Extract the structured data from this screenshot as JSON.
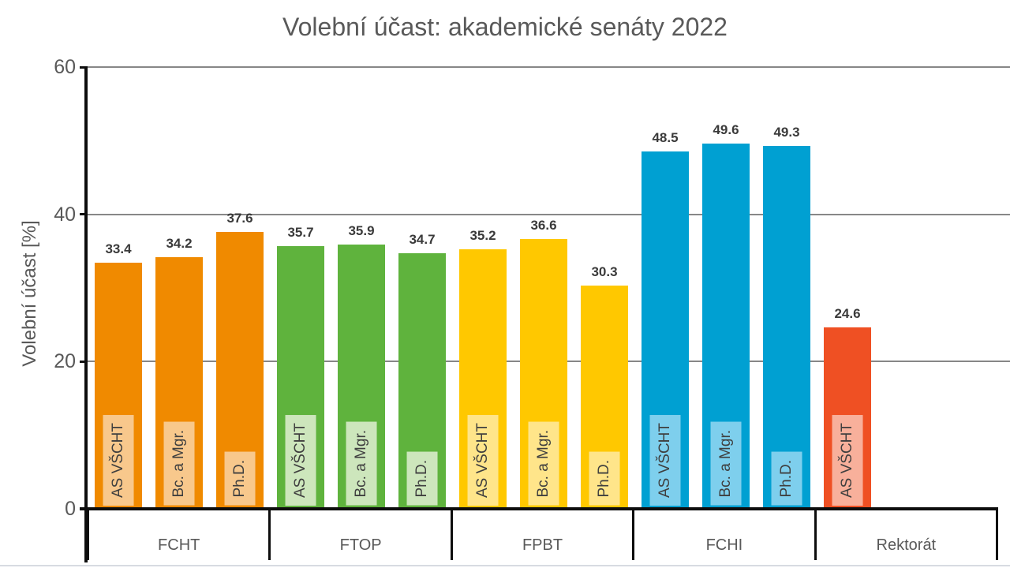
{
  "chart_data": {
    "type": "bar",
    "title": "Volební účast: akademické senáty 2022",
    "ylabel": "Volební účast [%]",
    "ylim": [
      0,
      60
    ],
    "yticks": [
      0,
      20,
      40,
      60
    ],
    "grid": "horizontal-gray-lines",
    "legend": "none",
    "value_labels": "above bars, one decimal",
    "bar_tag_style": "rotated 90deg text in light tinted box at bar base",
    "groups": [
      {
        "name": "FCHT",
        "color": "#F08A00",
        "tint": "#F8C88C",
        "bars": [
          {
            "label": "AS VŠCHT",
            "value": 33.4
          },
          {
            "label": "Bc. a Mgr.",
            "value": 34.2
          },
          {
            "label": "Ph.D.",
            "value": 37.6
          }
        ]
      },
      {
        "name": "FTOP",
        "color": "#5FB33D",
        "tint": "#CDE6BC",
        "bars": [
          {
            "label": "AS VŠCHT",
            "value": 35.7
          },
          {
            "label": "Bc. a Mgr.",
            "value": 35.9
          },
          {
            "label": "Ph.D.",
            "value": 34.7
          }
        ]
      },
      {
        "name": "FPBT",
        "color": "#FFC800",
        "tint": "#FFE58A",
        "bars": [
          {
            "label": "AS VŠCHT",
            "value": 35.2
          },
          {
            "label": "Bc. a Mgr.",
            "value": 36.6
          },
          {
            "label": "Ph.D.",
            "value": 30.3
          }
        ]
      },
      {
        "name": "FCHI",
        "color": "#00A0D2",
        "tint": "#7ECFED",
        "bars": [
          {
            "label": "AS VŠCHT",
            "value": 48.5
          },
          {
            "label": "Bc. a Mgr.",
            "value": 49.6
          },
          {
            "label": "Ph.D.",
            "value": 49.3
          }
        ]
      },
      {
        "name": "Rektorát",
        "color": "#EF5023",
        "tint": "#F8B09B",
        "bars": [
          {
            "label": "AS VŠCHT",
            "value": 24.6
          }
        ]
      }
    ],
    "text_colors": {
      "title": "#595959",
      "axis_labels": "#595959",
      "value_labels": "#3A3A3A",
      "bar_tag_text": "#3F3F3F"
    },
    "axis_color": "#0D0D0D",
    "gridline_color": "#878787"
  }
}
